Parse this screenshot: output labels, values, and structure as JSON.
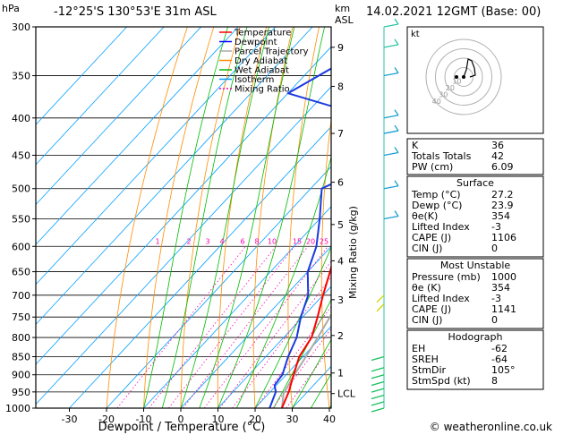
{
  "header": {
    "location": "-12°25'S  130°53'E  31m  ASL",
    "datetime": "14.02.2021  12GMT  (Base: 00)",
    "p_unit": "hPa",
    "km_unit": "km",
    "asl_unit": "ASL",
    "credit": "© weatheronline.co.uk"
  },
  "legend": [
    {
      "name": "Temperature",
      "color": "#ff0000",
      "dash": ""
    },
    {
      "name": "Dewpoint",
      "color": "#0000ff",
      "dash": ""
    },
    {
      "name": "Parcel Trajectory",
      "color": "#aaaaaa",
      "dash": ""
    },
    {
      "name": "Dry Adiabat",
      "color": "#ff8c00",
      "dash": ""
    },
    {
      "name": "Wet Adiabat",
      "color": "#00bb00",
      "dash": ""
    },
    {
      "name": "Isotherm",
      "color": "#00a0ff",
      "dash": ""
    },
    {
      "name": "Mixing Ratio",
      "color": "#ff00aa",
      "dash": "2,2"
    }
  ],
  "chart_data": {
    "type": "line",
    "xlabel": "Dewpoint / Temperature (°C)",
    "ylabel_right": "Mixing Ratio (g/kg)",
    "pressure_levels": [
      300,
      350,
      400,
      450,
      500,
      550,
      600,
      650,
      700,
      750,
      800,
      850,
      900,
      950,
      1000
    ],
    "x_ticks": [
      -30,
      -20,
      -10,
      0,
      10,
      20,
      30,
      40
    ],
    "xlim": [
      -35,
      40
    ],
    "ylim_hpa": [
      1000,
      300
    ],
    "km_ticks": [
      {
        "label": "9",
        "p": 320
      },
      {
        "label": "8",
        "p": 362
      },
      {
        "label": "7",
        "p": 420
      },
      {
        "label": "6",
        "p": 490
      },
      {
        "label": "5",
        "p": 560
      },
      {
        "label": "4",
        "p": 628
      },
      {
        "label": "3",
        "p": 710
      },
      {
        "label": "2",
        "p": 795
      },
      {
        "label": "1",
        "p": 895
      },
      {
        "label": "LCL",
        "p": 955
      }
    ],
    "mixing_ratio_labels": [
      "1",
      "2",
      "3",
      "4",
      "6",
      "8",
      "10",
      "15",
      "20",
      "25"
    ],
    "mixing_ratio_label_x": [
      176,
      211,
      232,
      248,
      271,
      287,
      304,
      332,
      347,
      362
    ],
    "temperature": [
      {
        "p": 1000,
        "t": 27.2
      },
      {
        "p": 950,
        "t": 25.0
      },
      {
        "p": 900,
        "t": 22.0
      },
      {
        "p": 850,
        "t": 19.0
      },
      {
        "p": 800,
        "t": 17.5
      },
      {
        "p": 750,
        "t": 14.0
      },
      {
        "p": 700,
        "t": 10.0
      },
      {
        "p": 650,
        "t": 6.0
      },
      {
        "p": 600,
        "t": 1.5
      },
      {
        "p": 550,
        "t": -3.5
      },
      {
        "p": 500,
        "t": -7.0
      },
      {
        "p": 450,
        "t": -13.5
      },
      {
        "p": 420,
        "t": -17.0
      },
      {
        "p": 400,
        "t": -21.0
      },
      {
        "p": 380,
        "t": -24.0
      },
      {
        "p": 360,
        "t": -28.5
      }
    ],
    "dewpoint": [
      {
        "p": 1000,
        "t": 23.9
      },
      {
        "p": 950,
        "t": 21.5
      },
      {
        "p": 930,
        "t": 19.5
      },
      {
        "p": 900,
        "t": 19.0
      },
      {
        "p": 850,
        "t": 16.0
      },
      {
        "p": 800,
        "t": 13.5
      },
      {
        "p": 750,
        "t": 9.5
      },
      {
        "p": 700,
        "t": 6.0
      },
      {
        "p": 650,
        "t": 0.0
      },
      {
        "p": 600,
        "t": -4.0
      },
      {
        "p": 550,
        "t": -10.0
      },
      {
        "p": 500,
        "t": -17.0
      },
      {
        "p": 490,
        "t": -15.0
      },
      {
        "p": 460,
        "t": -16.0
      },
      {
        "p": 450,
        "t": -21.0
      },
      {
        "p": 440,
        "t": -16.0
      },
      {
        "p": 420,
        "t": -17.0
      },
      {
        "p": 400,
        "t": -18.0
      },
      {
        "p": 395,
        "t": -26.0
      },
      {
        "p": 370,
        "t": -50.0
      },
      {
        "p": 330,
        "t": -42.0
      },
      {
        "p": 320,
        "t": -41.0
      },
      {
        "p": 300,
        "t": -55.0
      }
    ],
    "parcel": [
      {
        "p": 1000,
        "t": 27.2
      },
      {
        "p": 955,
        "t": 24.0
      },
      {
        "p": 900,
        "t": 22.2
      },
      {
        "p": 850,
        "t": 20.8
      },
      {
        "p": 800,
        "t": 19.2
      },
      {
        "p": 750,
        "t": 17.3
      },
      {
        "p": 700,
        "t": 15.2
      },
      {
        "p": 650,
        "t": 12.7
      },
      {
        "p": 600,
        "t": 9.8
      },
      {
        "p": 550,
        "t": 6.3
      },
      {
        "p": 500,
        "t": 2.0
      },
      {
        "p": 450,
        "t": -3.3
      },
      {
        "p": 400,
        "t": -10.0
      },
      {
        "p": 360,
        "t": -16.5
      }
    ]
  },
  "hodograph": {
    "unit": "kt",
    "ring_labels": [
      "10",
      "20",
      "30",
      "40"
    ]
  },
  "indices": {
    "rows": [
      {
        "label": "K",
        "value": "36"
      },
      {
        "label": "Totals Totals",
        "value": "42"
      },
      {
        "label": "PW (cm)",
        "value": "6.09"
      }
    ]
  },
  "surface": {
    "title": "Surface",
    "rows": [
      {
        "label": "Temp (°C)",
        "value": "27.2"
      },
      {
        "label": "Dewp (°C)",
        "value": "23.9"
      },
      {
        "label": "θe(K)",
        "value": "354"
      },
      {
        "label": "Lifted Index",
        "value": "-3"
      },
      {
        "label": "CAPE (J)",
        "value": "1106"
      },
      {
        "label": "CIN (J)",
        "value": "0"
      }
    ]
  },
  "unstable": {
    "title": "Most Unstable",
    "rows": [
      {
        "label": "Pressure (mb)",
        "value": "1000"
      },
      {
        "label": "θe (K)",
        "value": "354"
      },
      {
        "label": "Lifted Index",
        "value": "-3"
      },
      {
        "label": "CAPE (J)",
        "value": "1141"
      },
      {
        "label": "CIN (J)",
        "value": "0"
      }
    ]
  },
  "hodo_stats": {
    "title": "Hodograph",
    "rows": [
      {
        "label": "EH",
        "value": "-62"
      },
      {
        "label": "SREH",
        "value": "-64"
      },
      {
        "label": "StmDir",
        "value": "105°"
      },
      {
        "label": "StmSpd (kt)",
        "value": "8"
      }
    ]
  }
}
